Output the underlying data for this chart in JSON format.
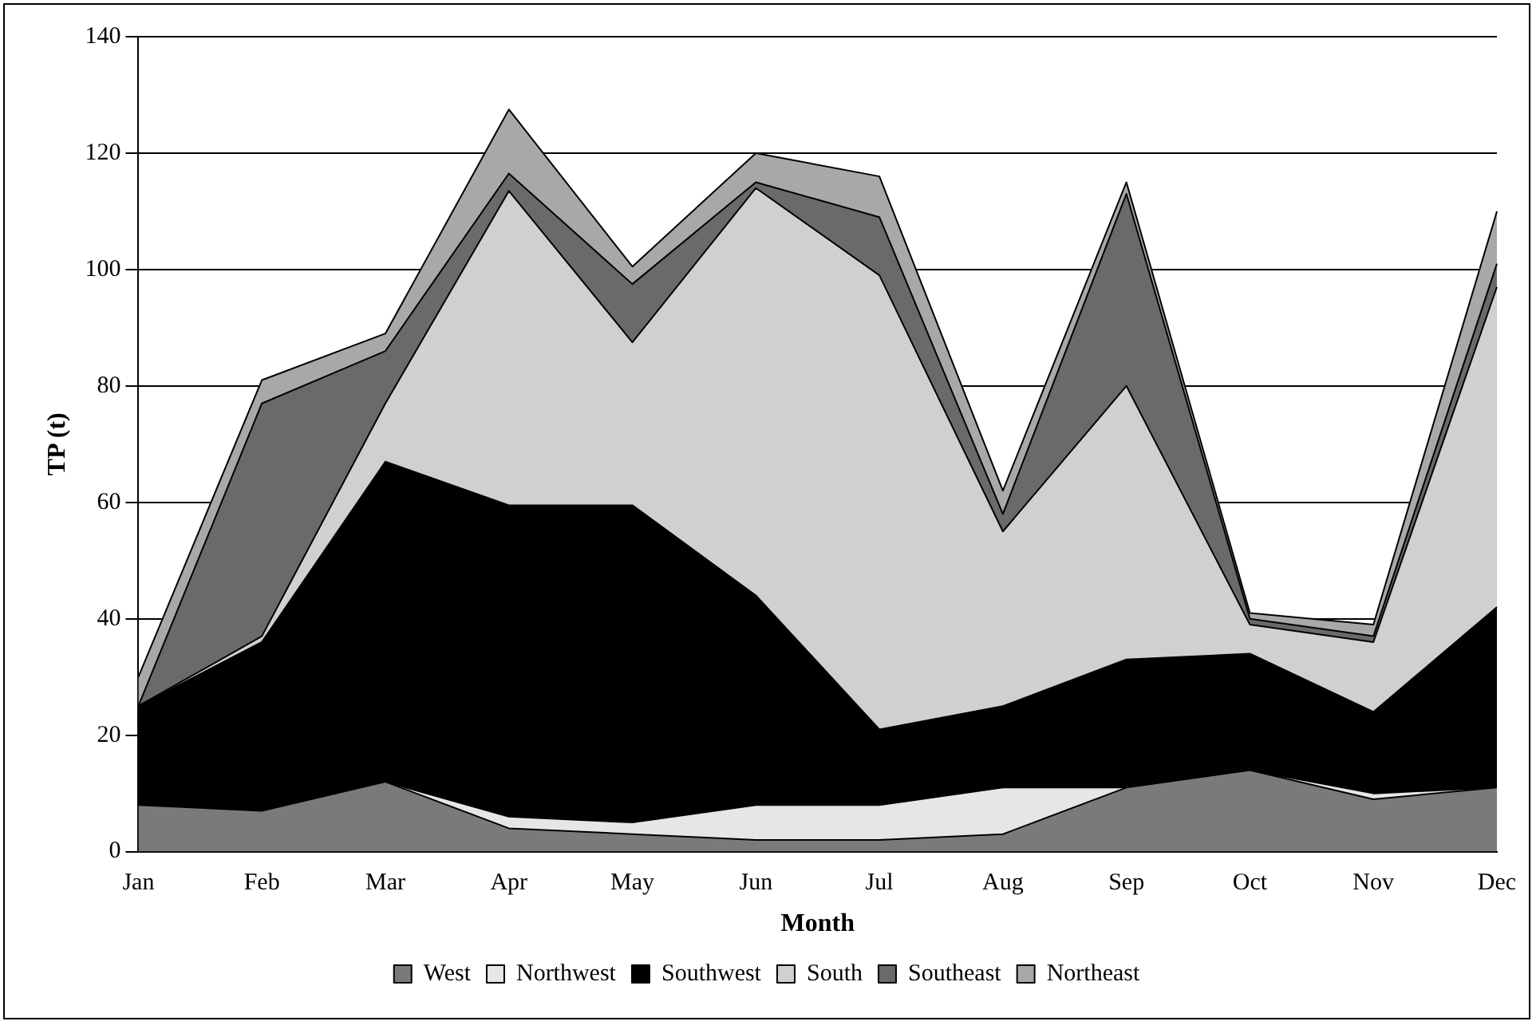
{
  "chart_data": {
    "type": "area",
    "xlabel": "Month",
    "ylabel": "TP (t)",
    "stacked": true,
    "categories": [
      "Jan",
      "Feb",
      "Mar",
      "Apr",
      "May",
      "Jun",
      "Jul",
      "Aug",
      "Sep",
      "Oct",
      "Nov",
      "Dec"
    ],
    "ylim": [
      0,
      140
    ],
    "yticks": [
      0,
      20,
      40,
      60,
      80,
      100,
      120,
      140
    ],
    "grid": "y",
    "legend": "bottom",
    "series": [
      {
        "name": "West",
        "color": "#7a7a7a",
        "values": [
          8,
          7,
          12,
          4,
          3,
          2,
          2,
          3,
          11,
          14,
          9,
          11
        ]
      },
      {
        "name": "Northwest",
        "color": "#e6e6e6",
        "values": [
          0,
          0,
          0,
          2,
          2,
          6,
          6,
          8,
          0,
          0,
          1,
          0
        ]
      },
      {
        "name": "Southwest",
        "color": "#000000",
        "values": [
          17,
          29,
          55,
          53.5,
          54.5,
          36,
          13,
          14,
          22,
          20,
          14,
          31
        ]
      },
      {
        "name": "South",
        "color": "#d0d0d0",
        "values": [
          0,
          1,
          10,
          54,
          28,
          70,
          78,
          30,
          47,
          5,
          12,
          55
        ]
      },
      {
        "name": "Southeast",
        "color": "#6a6a6a",
        "values": [
          0,
          40,
          9,
          3,
          10,
          1,
          10,
          3,
          33,
          1,
          1,
          4
        ]
      },
      {
        "name": "Northeast",
        "color": "#a8a8a8",
        "values": [
          5,
          4,
          3,
          11,
          3,
          5,
          7,
          4,
          2,
          1,
          2,
          9
        ]
      }
    ]
  }
}
